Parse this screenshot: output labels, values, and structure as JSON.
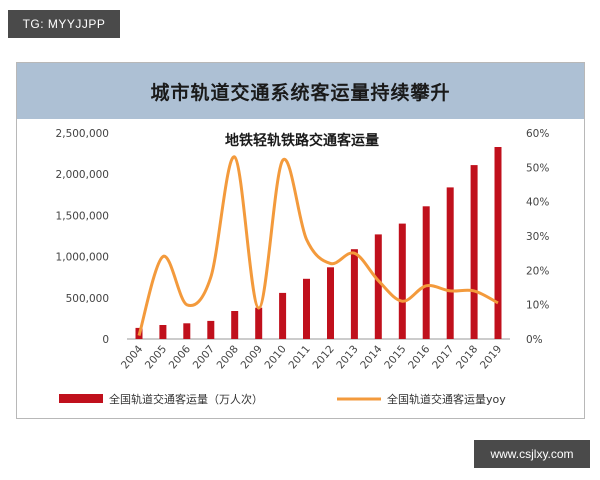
{
  "watermark_top": "TG: MYYJJPP",
  "watermark_bottom": "www.csjlxy.com",
  "banner_title": "城市轨道交通系统客运量持续攀升",
  "chart_data": {
    "type": "bar",
    "title": "地铁轻轨铁路交通客运量",
    "categories": [
      "2004",
      "2005",
      "2006",
      "2007",
      "2008",
      "2009",
      "2010",
      "2011",
      "2012",
      "2013",
      "2014",
      "2015",
      "2016",
      "2017",
      "2018",
      "2019"
    ],
    "series": [
      {
        "name": "全国轨道交通客运量（万人次）",
        "type": "bar",
        "axis": "left",
        "color": "#c0101c",
        "values": [
          135000,
          170000,
          190000,
          220000,
          340000,
          380000,
          560000,
          730000,
          870000,
          1090000,
          1270000,
          1400000,
          1610000,
          1840000,
          2110000,
          2330000
        ]
      },
      {
        "name": "全国轨道交通客运量yoy",
        "type": "line",
        "axis": "right",
        "color": "#f39a3c",
        "values": [
          0.01,
          0.24,
          0.1,
          0.18,
          0.53,
          0.09,
          0.52,
          0.29,
          0.22,
          0.25,
          0.17,
          0.11,
          0.155,
          0.14,
          0.14,
          0.105
        ]
      }
    ],
    "y_left": {
      "range": [
        0,
        2500000
      ],
      "ticks": [
        0,
        500000,
        1000000,
        1500000,
        2000000,
        2500000
      ],
      "tick_labels": [
        "0",
        "500,000",
        "1,000,000",
        "1,500,000",
        "2,000,000",
        "2,500,000"
      ]
    },
    "y_right": {
      "range": [
        0,
        0.6
      ],
      "ticks": [
        0,
        0.1,
        0.2,
        0.3,
        0.4,
        0.5,
        0.6
      ],
      "tick_labels": [
        "0%",
        "10%",
        "20%",
        "30%",
        "40%",
        "50%",
        "60%"
      ]
    },
    "grid": false,
    "legend_position": "bottom"
  }
}
